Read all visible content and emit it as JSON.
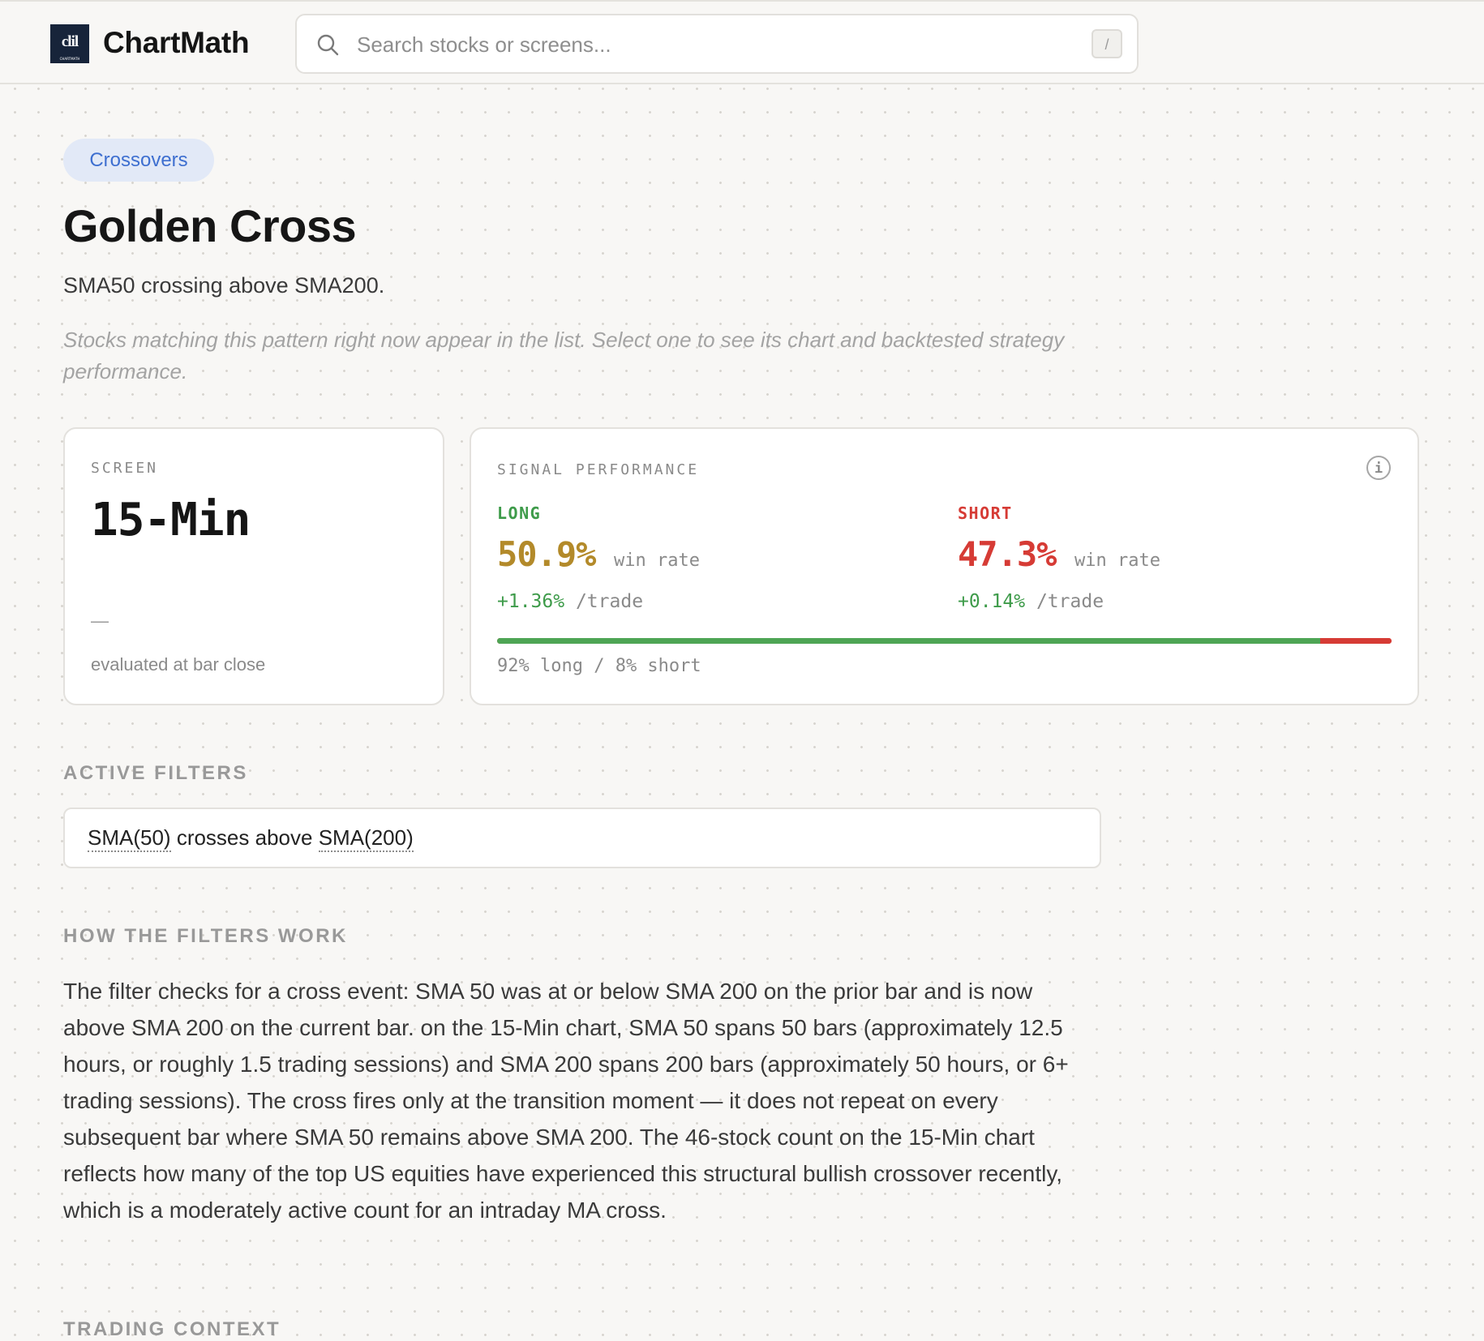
{
  "header": {
    "logo_mark_text": "clil",
    "logo_mark_subtext": "CHARTMATH",
    "brand_name": "ChartMath",
    "search_placeholder": "Search stocks or screens...",
    "search_value": "",
    "search_shortcut": "/"
  },
  "pattern": {
    "category": "Crossovers",
    "title": "Golden Cross",
    "subtitle": "SMA50 crossing above SMA200.",
    "hint": "Stocks matching this pattern right now appear in the list. Select one to see its chart and backtested strategy performance."
  },
  "screen_card": {
    "label": "SCREEN",
    "value": "15-Min",
    "dash": "—",
    "note": "evaluated at bar close"
  },
  "performance_card": {
    "label": "SIGNAL PERFORMANCE",
    "long": {
      "label": "LONG",
      "win_rate": "50.9%",
      "win_rate_label": "win rate",
      "per_trade": "+1.36%",
      "per_trade_unit": "/trade"
    },
    "short": {
      "label": "SHORT",
      "win_rate": "47.3%",
      "win_rate_label": "win rate",
      "per_trade": "+0.14%",
      "per_trade_unit": "/trade"
    },
    "split": {
      "long_fraction": 0.92,
      "short_fraction": 0.08,
      "text": "92% long / 8% short"
    }
  },
  "active_filters": {
    "heading": "ACTIVE FILTERS",
    "term_a": "SMA(50)",
    "connector": "crosses above",
    "term_b": "SMA(200)"
  },
  "how_filters_work": {
    "heading": "HOW THE FILTERS WORK",
    "body": "The filter checks for a cross event: SMA 50 was at or below SMA 200 on the prior bar and is now above SMA 200 on the current bar. on the 15-Min chart, SMA 50 spans 50 bars (approximately 12.5 hours, or roughly 1.5 trading sessions) and SMA 200 spans 200 bars (approximately 50 hours, or 6+ trading sessions). The cross fires only at the transition moment — it does not repeat on every subsequent bar where SMA 50 remains above SMA 200. The 46-stock count on the 15-Min chart reflects how many of the top US equities have experienced this structural bullish crossover recently, which is a moderately active count for an intraday MA cross."
  },
  "trading_context": {
    "heading": "TRADING CONTEXT"
  },
  "colors": {
    "accent_blue": "#3e6fd0",
    "long_green": "#3e9b4a",
    "long_rate_gold": "#b38a2a",
    "short_red": "#d63b35",
    "logo_navy": "#17243a"
  },
  "icons": {
    "search": "search-icon",
    "info": "info-icon"
  }
}
